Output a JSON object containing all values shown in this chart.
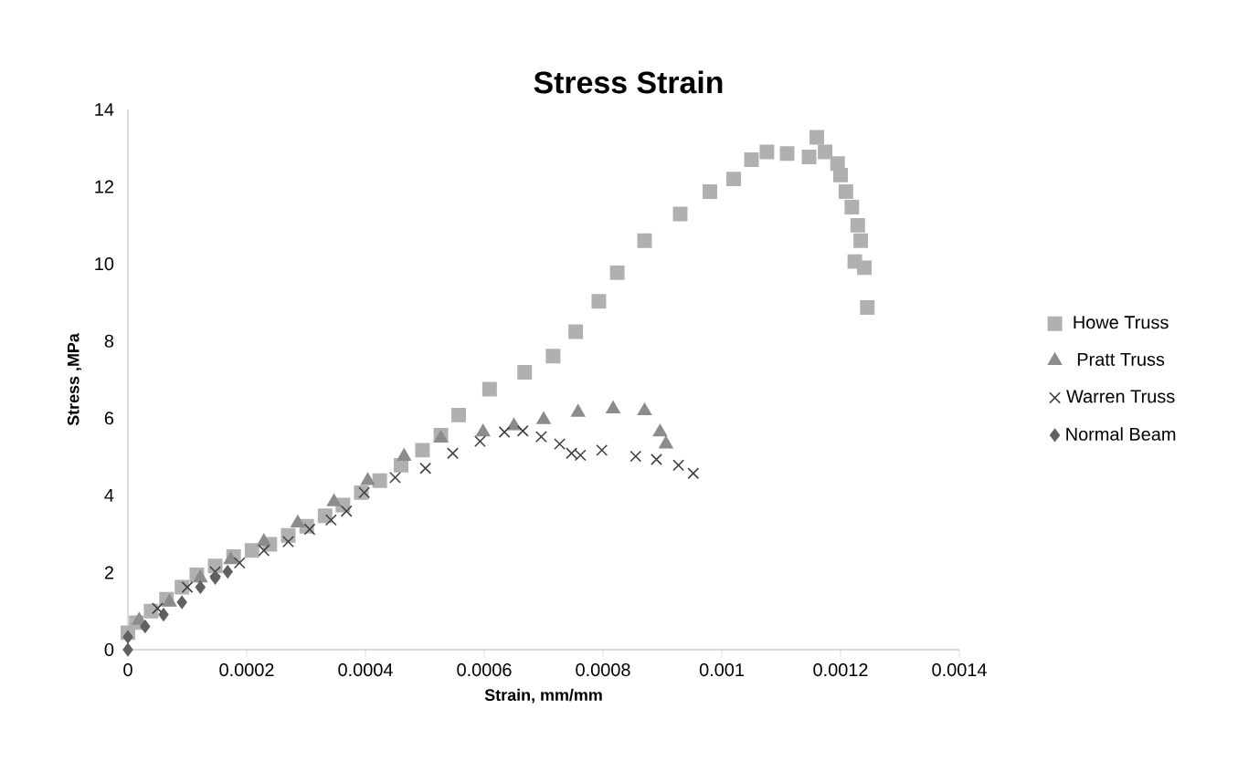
{
  "chart_data": {
    "type": "scatter",
    "title": "Stress Strain",
    "xlabel": "Strain, mm/mm",
    "ylabel": "Stress ,MPa",
    "xlim": [
      0,
      0.0014
    ],
    "ylim": [
      0,
      14
    ],
    "xticks": [
      0,
      0.0002,
      0.0004,
      0.0006,
      0.0008,
      0.001,
      0.0012,
      0.0014
    ],
    "yticks": [
      0,
      2,
      4,
      6,
      8,
      10,
      12,
      14
    ],
    "grid": false,
    "legend": "right",
    "series": [
      {
        "name": "Howe Truss",
        "color": "#b0b0b0",
        "marker": "square",
        "x": [
          0,
          1.4e-05,
          3.9e-05,
          6.5e-05,
          9.1e-05,
          0.000116,
          0.000147,
          0.000178,
          0.000209,
          0.000239,
          0.00027,
          0.000301,
          0.000332,
          0.000362,
          0.000393,
          0.000424,
          0.00046,
          0.000496,
          0.000527,
          0.000557,
          0.000609,
          0.000668,
          0.000716,
          0.000754,
          0.000793,
          0.000824,
          0.00087,
          0.00093,
          0.00098,
          0.00102,
          0.00105,
          0.001076,
          0.00111,
          0.001147,
          0.00116,
          0.001174,
          0.001195,
          0.0012,
          0.001209,
          0.001219,
          0.001229,
          0.001234,
          0.001224,
          0.00124,
          0.001245
        ],
        "values": [
          0.44,
          0.7,
          1.0,
          1.31,
          1.62,
          1.94,
          2.17,
          2.41,
          2.57,
          2.73,
          2.96,
          3.2,
          3.47,
          3.75,
          4.07,
          4.38,
          4.78,
          5.17,
          5.56,
          6.08,
          6.75,
          7.19,
          7.61,
          8.24,
          9.03,
          9.77,
          10.6,
          11.29,
          11.87,
          12.2,
          12.7,
          12.9,
          12.86,
          12.77,
          13.28,
          12.9,
          12.6,
          12.3,
          11.87,
          11.47,
          11.0,
          10.6,
          10.06,
          9.9,
          8.87
        ]
      },
      {
        "name": "Pratt Truss",
        "color": "#8c8c8c",
        "marker": "triangle",
        "x": [
          1.9e-05,
          7e-05,
          0.000122,
          0.000173,
          0.000229,
          0.000286,
          0.000347,
          0.000404,
          0.000465,
          0.000527,
          0.000598,
          0.00065,
          0.0007,
          0.000758,
          0.000817,
          0.00087,
          0.000896,
          0.000906
        ],
        "values": [
          0.76,
          1.23,
          1.86,
          2.33,
          2.8,
          3.28,
          3.83,
          4.38,
          5.01,
          5.48,
          5.64,
          5.8,
          5.96,
          6.15,
          6.24,
          6.19,
          5.64,
          5.33
        ]
      },
      {
        "name": "Warren Truss",
        "color": "#404040",
        "marker": "cross",
        "x": [
          5e-05,
          0.0001,
          0.000147,
          0.000188,
          0.000229,
          0.00027,
          0.000306,
          0.000342,
          0.000368,
          0.000398,
          0.00045,
          0.000501,
          0.000547,
          0.000593,
          0.000634,
          0.000665,
          0.000696,
          0.000727,
          0.000747,
          0.000762,
          0.000798,
          0.000855,
          0.00089,
          0.000927,
          0.000952
        ],
        "values": [
          1.07,
          1.62,
          2.02,
          2.25,
          2.57,
          2.8,
          3.12,
          3.36,
          3.59,
          4.07,
          4.46,
          4.7,
          5.09,
          5.4,
          5.64,
          5.67,
          5.52,
          5.33,
          5.09,
          5.04,
          5.17,
          5.01,
          4.93,
          4.78,
          4.57
        ]
      },
      {
        "name": "Normal Beam",
        "color": "#606060",
        "marker": "diamond",
        "x": [
          0,
          0,
          2.9e-05,
          6e-05,
          9.1e-05,
          0.000122,
          0.000147,
          0.000168
        ],
        "values": [
          0,
          0.33,
          0.6,
          0.91,
          1.23,
          1.62,
          1.86,
          2.02
        ]
      }
    ]
  }
}
